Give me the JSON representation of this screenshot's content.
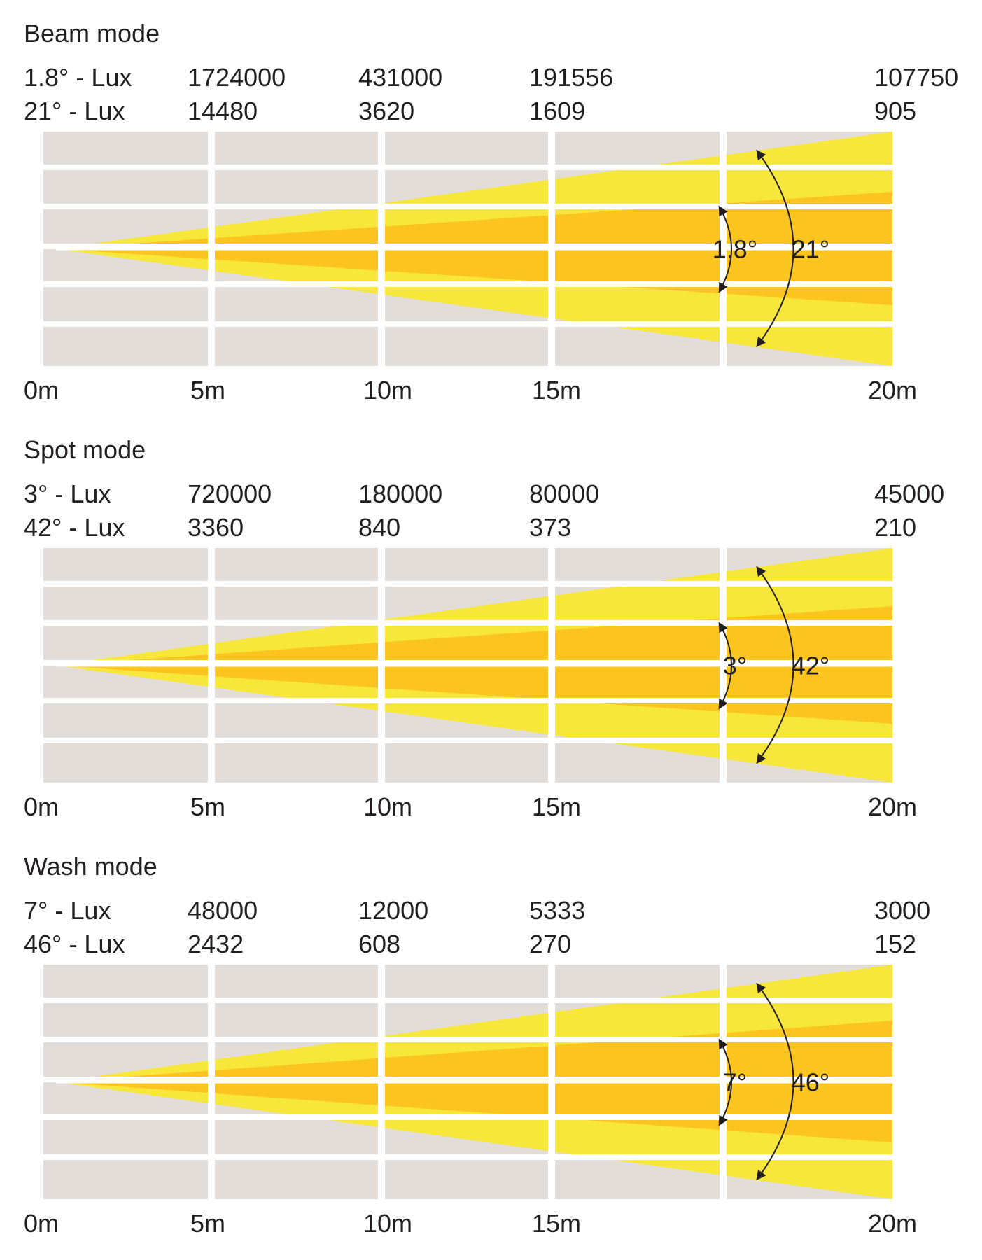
{
  "colors": {
    "background_grid": "#e2ddd9",
    "grid_lines": "#ffffff",
    "wide_beam": "#f7e73a",
    "narrow_beam": "#fbc41f",
    "text": "#231f20"
  },
  "distance_labels": [
    "0m",
    "5m",
    "10m",
    "15m",
    "20m"
  ],
  "modes": [
    {
      "title": "Beam mode",
      "narrow": {
        "angle": "1.8°",
        "label": "1.8° - Lux",
        "lux": [
          "1724000",
          "431000",
          "191556",
          "107750"
        ]
      },
      "wide": {
        "angle": "21°",
        "label": "21° - Lux",
        "lux": [
          "14480",
          "3620",
          "1609",
          "905"
        ]
      }
    },
    {
      "title": "Spot mode",
      "narrow": {
        "angle": "3°",
        "label": "3° - Lux",
        "lux": [
          "720000",
          "180000",
          "80000",
          "45000"
        ]
      },
      "wide": {
        "angle": "42°",
        "label": "42° - Lux",
        "lux": [
          "3360",
          "840",
          "373",
          "210"
        ]
      }
    },
    {
      "title": "Wash mode",
      "narrow": {
        "angle": "7°",
        "label": "7° - Lux",
        "lux": [
          "48000",
          "12000",
          "5333",
          "3000"
        ]
      },
      "wide": {
        "angle": "46°",
        "label": "46° - Lux",
        "lux": [
          "2432",
          "608",
          "270",
          "152"
        ]
      }
    }
  ]
}
